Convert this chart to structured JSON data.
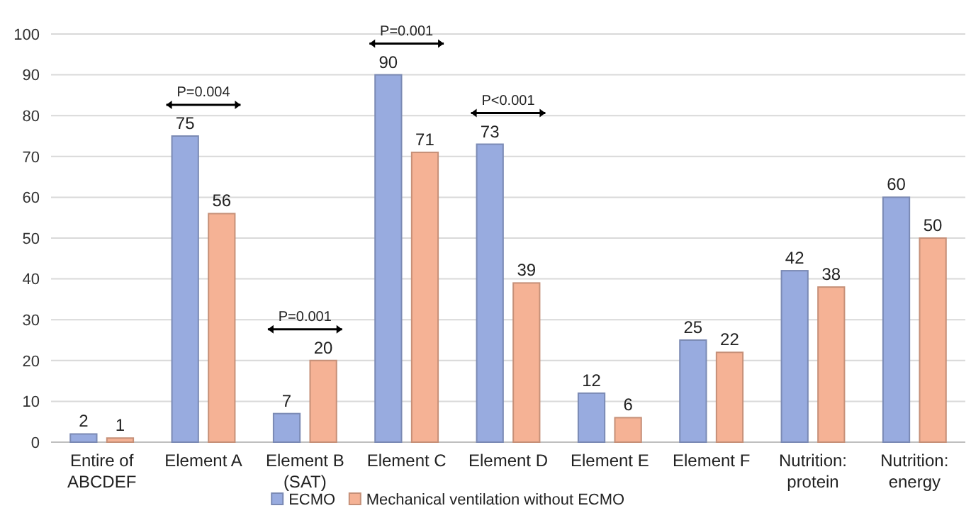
{
  "chart_data": {
    "type": "bar",
    "categories": [
      "Entire of ABCDEF",
      "Element A",
      "Element B (SAT)",
      "Element C",
      "Element D",
      "Element E",
      "Element F",
      "Nutrition: protein",
      "Nutrition: energy"
    ],
    "series": [
      {
        "name": "ECMO",
        "color": "#98abdf",
        "values": [
          2,
          75,
          7,
          90,
          73,
          12,
          25,
          42,
          60
        ]
      },
      {
        "name": "Mechanical ventilation without ECMO",
        "color": "#f5b295",
        "values": [
          1,
          56,
          20,
          71,
          39,
          6,
          22,
          38,
          50
        ]
      }
    ],
    "ylim": [
      0,
      100
    ],
    "yticks": [
      0,
      10,
      20,
      30,
      40,
      50,
      60,
      70,
      80,
      90,
      100
    ],
    "grid": "y",
    "legend": "bottom",
    "data_labels": true,
    "annotations": [
      "P=0.004",
      "P=0.001",
      "P=0.001",
      "P<0.001"
    ]
  }
}
